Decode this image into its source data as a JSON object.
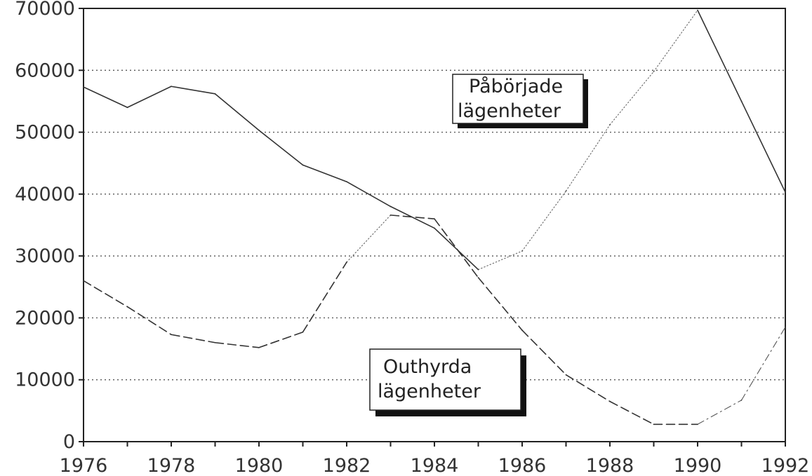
{
  "chart_data": {
    "type": "line",
    "title": "",
    "xlabel": "",
    "ylabel": "",
    "x": [
      1976,
      1977,
      1978,
      1979,
      1980,
      1981,
      1982,
      1983,
      1984,
      1985,
      1986,
      1987,
      1988,
      1989,
      1990,
      1991,
      1992
    ],
    "xlim": [
      1976,
      1992
    ],
    "ylim": [
      0,
      70000
    ],
    "x_ticks": [
      "1976",
      "1978",
      "1980",
      "1982",
      "1984",
      "1986",
      "1988",
      "1990",
      "1992"
    ],
    "y_ticks": [
      "0",
      "10000",
      "20000",
      "30000",
      "40000",
      "50000",
      "60000",
      "70000"
    ],
    "grid": "horizontal dotted",
    "series": [
      {
        "name": "Påbörjade lägenheter",
        "label_lines": [
          "Påbörjade",
          "lägenheter"
        ],
        "style": "solid-then-dotted",
        "values": [
          57300,
          54000,
          57400,
          56200,
          50300,
          44700,
          42000,
          38000,
          34500,
          27800,
          30800,
          40500,
          51200,
          59800,
          69700,
          55000,
          40300
        ]
      },
      {
        "name": "Outhyrda lägenheter",
        "label_lines": [
          "Outhyrda",
          "lägenheter"
        ],
        "style": "dashed-then-dotted",
        "values": [
          26000,
          21800,
          17300,
          16000,
          15200,
          17700,
          29000,
          36600,
          36000,
          26500,
          18000,
          10800,
          6500,
          2800,
          2800,
          6700,
          18500
        ]
      }
    ]
  }
}
